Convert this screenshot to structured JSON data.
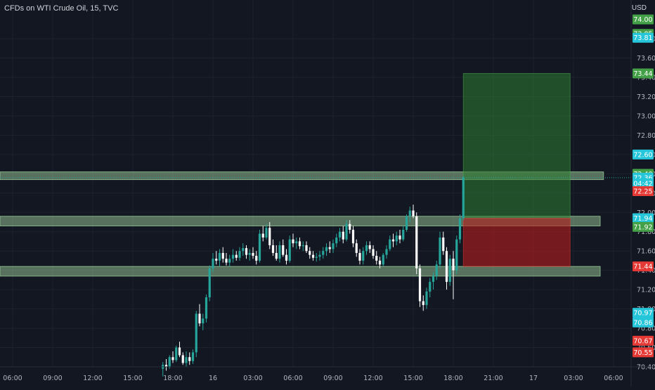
{
  "header": {
    "title": "CFDs on WTI Crude Oil, 15, TVC",
    "currency": "USD"
  },
  "colors": {
    "background": "#131722",
    "grid": "#1e222d",
    "up": "#26a69a",
    "down": "#ef5350",
    "zone": "#8fbc8f",
    "target_zone": "#2e7d32",
    "stop_zone": "#b71c1c",
    "axis_text": "#b2b5be",
    "label_cyan": "#26c6da",
    "label_green": "#43a047",
    "label_red": "#e53935"
  },
  "chart_data": {
    "type": "candlestick",
    "title": "CFDs on WTI Crude Oil, 15, TVC",
    "xlabel": "",
    "ylabel": "USD",
    "ylim": [
      70.4,
      74.07
    ],
    "grid": true,
    "x_ticks": [
      "06:00",
      "09:00",
      "12:00",
      "15:00",
      "18:00",
      "16",
      "03:00",
      "06:00",
      "09:00",
      "12:00",
      "15:00",
      "18:00",
      "21:00",
      "17",
      "03:00",
      "06:00"
    ],
    "y_ticks": [
      70.4,
      70.6,
      70.8,
      71.0,
      71.2,
      71.4,
      71.6,
      71.8,
      72.0,
      72.2,
      72.4,
      72.6,
      72.8,
      73.0,
      73.2,
      73.4,
      73.6,
      73.8
    ],
    "candles": [
      {
        "t": "17:15",
        "o": 70.38,
        "h": 70.45,
        "l": 70.3,
        "c": 70.42
      },
      {
        "t": "17:30",
        "o": 70.42,
        "h": 70.48,
        "l": 70.36,
        "c": 70.4
      },
      {
        "t": "17:45",
        "o": 70.4,
        "h": 70.52,
        "l": 70.38,
        "c": 70.5
      },
      {
        "t": "18:00",
        "o": 70.5,
        "h": 70.56,
        "l": 70.44,
        "c": 70.47
      },
      {
        "t": "18:15",
        "o": 70.47,
        "h": 70.62,
        "l": 70.45,
        "c": 70.6
      },
      {
        "t": "18:30",
        "o": 70.6,
        "h": 70.66,
        "l": 70.5,
        "c": 70.52
      },
      {
        "t": "18:45",
        "o": 70.52,
        "h": 70.55,
        "l": 70.42,
        "c": 70.44
      },
      {
        "t": "19:00",
        "o": 70.44,
        "h": 70.56,
        "l": 70.4,
        "c": 70.5
      },
      {
        "t": "19:15",
        "o": 70.5,
        "h": 70.55,
        "l": 70.42,
        "c": 70.46
      },
      {
        "t": "19:30",
        "o": 70.46,
        "h": 70.58,
        "l": 70.43,
        "c": 70.55
      },
      {
        "t": "19:45",
        "o": 70.55,
        "h": 70.98,
        "l": 70.5,
        "c": 70.95
      },
      {
        "t": "20:00",
        "o": 70.95,
        "h": 71.05,
        "l": 70.82,
        "c": 70.85
      },
      {
        "t": "20:15",
        "o": 70.85,
        "h": 70.95,
        "l": 70.78,
        "c": 70.9
      },
      {
        "t": "20:30",
        "o": 70.9,
        "h": 71.15,
        "l": 70.86,
        "c": 71.12
      },
      {
        "t": "20:45",
        "o": 71.12,
        "h": 71.45,
        "l": 71.08,
        "c": 71.42
      },
      {
        "t": "21:00",
        "o": 71.42,
        "h": 71.58,
        "l": 71.38,
        "c": 71.52
      },
      {
        "t": "21:15",
        "o": 71.52,
        "h": 71.6,
        "l": 71.46,
        "c": 71.5
      },
      {
        "t": "21:30",
        "o": 71.5,
        "h": 71.62,
        "l": 71.44,
        "c": 71.58
      },
      {
        "t": "21:45",
        "o": 71.58,
        "h": 71.64,
        "l": 71.48,
        "c": 71.52
      },
      {
        "t": "22:00",
        "o": 71.52,
        "h": 71.58,
        "l": 71.45,
        "c": 71.48
      },
      {
        "t": "22:15",
        "o": 71.48,
        "h": 71.56,
        "l": 71.44,
        "c": 71.52
      },
      {
        "t": "22:30",
        "o": 71.52,
        "h": 71.62,
        "l": 71.48,
        "c": 71.56
      },
      {
        "t": "22:45",
        "o": 71.56,
        "h": 71.6,
        "l": 71.5,
        "c": 71.53
      },
      {
        "t": "23:00",
        "o": 71.53,
        "h": 71.64,
        "l": 71.5,
        "c": 71.6
      },
      {
        "t": "23:15",
        "o": 71.6,
        "h": 71.68,
        "l": 71.55,
        "c": 71.63
      },
      {
        "t": "23:30",
        "o": 71.63,
        "h": 71.66,
        "l": 71.52,
        "c": 71.56
      },
      {
        "t": "23:45",
        "o": 71.56,
        "h": 71.62,
        "l": 71.5,
        "c": 71.58
      },
      {
        "t": "00:00",
        "o": 71.58,
        "h": 71.64,
        "l": 71.52,
        "c": 71.55
      },
      {
        "t": "00:15",
        "o": 71.55,
        "h": 71.6,
        "l": 71.46,
        "c": 71.5
      },
      {
        "t": "00:30",
        "o": 71.5,
        "h": 71.82,
        "l": 71.48,
        "c": 71.78
      },
      {
        "t": "00:45",
        "o": 71.78,
        "h": 71.86,
        "l": 71.7,
        "c": 71.74
      },
      {
        "t": "01:00",
        "o": 71.74,
        "h": 71.88,
        "l": 71.72,
        "c": 71.84
      },
      {
        "t": "01:15",
        "o": 71.84,
        "h": 71.9,
        "l": 71.62,
        "c": 71.66
      },
      {
        "t": "01:30",
        "o": 71.66,
        "h": 71.72,
        "l": 71.55,
        "c": 71.58
      },
      {
        "t": "01:45",
        "o": 71.58,
        "h": 71.66,
        "l": 71.5,
        "c": 71.52
      },
      {
        "t": "02:00",
        "o": 71.52,
        "h": 71.7,
        "l": 71.48,
        "c": 71.66
      },
      {
        "t": "02:15",
        "o": 71.66,
        "h": 71.72,
        "l": 71.54,
        "c": 71.56
      },
      {
        "t": "02:30",
        "o": 71.56,
        "h": 71.62,
        "l": 71.46,
        "c": 71.5
      },
      {
        "t": "02:45",
        "o": 71.5,
        "h": 71.76,
        "l": 71.48,
        "c": 71.72
      },
      {
        "t": "03:00",
        "o": 71.72,
        "h": 71.78,
        "l": 71.64,
        "c": 71.68
      },
      {
        "t": "03:15",
        "o": 71.68,
        "h": 71.74,
        "l": 71.62,
        "c": 71.7
      },
      {
        "t": "03:30",
        "o": 71.7,
        "h": 71.74,
        "l": 71.62,
        "c": 71.65
      },
      {
        "t": "03:45",
        "o": 71.65,
        "h": 71.7,
        "l": 71.6,
        "c": 71.66
      },
      {
        "t": "04:00",
        "o": 71.66,
        "h": 71.7,
        "l": 71.58,
        "c": 71.6
      },
      {
        "t": "04:15",
        "o": 71.6,
        "h": 71.64,
        "l": 71.52,
        "c": 71.56
      },
      {
        "t": "04:30",
        "o": 71.56,
        "h": 71.6,
        "l": 71.5,
        "c": 71.53
      },
      {
        "t": "04:45",
        "o": 71.53,
        "h": 71.58,
        "l": 71.49,
        "c": 71.54
      },
      {
        "t": "05:00",
        "o": 71.54,
        "h": 71.6,
        "l": 71.5,
        "c": 71.56
      },
      {
        "t": "05:15",
        "o": 71.56,
        "h": 71.64,
        "l": 71.52,
        "c": 71.6
      },
      {
        "t": "05:30",
        "o": 71.6,
        "h": 71.68,
        "l": 71.55,
        "c": 71.64
      },
      {
        "t": "05:45",
        "o": 71.64,
        "h": 71.7,
        "l": 71.58,
        "c": 71.62
      },
      {
        "t": "06:00",
        "o": 71.62,
        "h": 71.72,
        "l": 71.58,
        "c": 71.68
      },
      {
        "t": "06:15",
        "o": 71.68,
        "h": 71.78,
        "l": 71.64,
        "c": 71.74
      },
      {
        "t": "06:30",
        "o": 71.74,
        "h": 71.84,
        "l": 71.7,
        "c": 71.8
      },
      {
        "t": "06:45",
        "o": 71.8,
        "h": 71.86,
        "l": 71.68,
        "c": 71.72
      },
      {
        "t": "07:00",
        "o": 71.72,
        "h": 71.92,
        "l": 71.7,
        "c": 71.88
      },
      {
        "t": "07:15",
        "o": 71.88,
        "h": 71.92,
        "l": 71.78,
        "c": 71.82
      },
      {
        "t": "07:30",
        "o": 71.82,
        "h": 71.86,
        "l": 71.64,
        "c": 71.68
      },
      {
        "t": "07:45",
        "o": 71.68,
        "h": 71.72,
        "l": 71.54,
        "c": 71.58
      },
      {
        "t": "08:00",
        "o": 71.58,
        "h": 71.62,
        "l": 71.46,
        "c": 71.5
      },
      {
        "t": "08:15",
        "o": 71.5,
        "h": 71.64,
        "l": 71.46,
        "c": 71.6
      },
      {
        "t": "08:30",
        "o": 71.6,
        "h": 71.7,
        "l": 71.56,
        "c": 71.66
      },
      {
        "t": "08:45",
        "o": 71.66,
        "h": 71.7,
        "l": 71.58,
        "c": 71.62
      },
      {
        "t": "09:00",
        "o": 71.62,
        "h": 71.66,
        "l": 71.52,
        "c": 71.55
      },
      {
        "t": "09:15",
        "o": 71.55,
        "h": 71.6,
        "l": 71.46,
        "c": 71.5
      },
      {
        "t": "09:30",
        "o": 71.5,
        "h": 71.54,
        "l": 71.42,
        "c": 71.46
      },
      {
        "t": "09:45",
        "o": 71.46,
        "h": 71.58,
        "l": 71.44,
        "c": 71.56
      },
      {
        "t": "10:00",
        "o": 71.56,
        "h": 71.66,
        "l": 71.52,
        "c": 71.62
      },
      {
        "t": "10:15",
        "o": 71.62,
        "h": 71.76,
        "l": 71.6,
        "c": 71.72
      },
      {
        "t": "10:30",
        "o": 71.72,
        "h": 71.78,
        "l": 71.64,
        "c": 71.7
      },
      {
        "t": "10:45",
        "o": 71.7,
        "h": 71.8,
        "l": 71.66,
        "c": 71.76
      },
      {
        "t": "11:00",
        "o": 71.76,
        "h": 71.82,
        "l": 71.68,
        "c": 71.72
      },
      {
        "t": "11:15",
        "o": 71.72,
        "h": 71.86,
        "l": 71.7,
        "c": 71.82
      },
      {
        "t": "11:30",
        "o": 71.82,
        "h": 71.98,
        "l": 71.8,
        "c": 71.96
      },
      {
        "t": "11:45",
        "o": 71.96,
        "h": 72.06,
        "l": 71.9,
        "c": 72.02
      },
      {
        "t": "12:00",
        "o": 72.02,
        "h": 72.08,
        "l": 71.94,
        "c": 71.96
      },
      {
        "t": "12:15",
        "o": 71.96,
        "h": 72.0,
        "l": 71.36,
        "c": 71.42
      },
      {
        "t": "12:30",
        "o": 71.42,
        "h": 71.46,
        "l": 71.02,
        "c": 71.08
      },
      {
        "t": "12:45",
        "o": 71.08,
        "h": 71.14,
        "l": 70.98,
        "c": 71.04
      },
      {
        "t": "13:00",
        "o": 71.04,
        "h": 71.22,
        "l": 71.0,
        "c": 71.18
      },
      {
        "t": "13:15",
        "o": 71.18,
        "h": 71.32,
        "l": 71.12,
        "c": 71.28
      },
      {
        "t": "13:30",
        "o": 71.28,
        "h": 71.38,
        "l": 71.2,
        "c": 71.34
      },
      {
        "t": "13:45",
        "o": 71.34,
        "h": 71.5,
        "l": 71.3,
        "c": 71.46
      },
      {
        "t": "14:00",
        "o": 71.46,
        "h": 71.8,
        "l": 71.42,
        "c": 71.74
      },
      {
        "t": "14:15",
        "o": 71.74,
        "h": 71.8,
        "l": 71.56,
        "c": 71.6
      },
      {
        "t": "14:30",
        "o": 71.6,
        "h": 71.64,
        "l": 71.2,
        "c": 71.28
      },
      {
        "t": "14:45",
        "o": 71.28,
        "h": 71.56,
        "l": 71.24,
        "c": 71.52
      },
      {
        "t": "15:00",
        "o": 71.52,
        "h": 71.6,
        "l": 71.1,
        "c": 71.4
      },
      {
        "t": "15:15",
        "o": 71.4,
        "h": 71.76,
        "l": 71.36,
        "c": 71.72
      },
      {
        "t": "15:30",
        "o": 71.72,
        "h": 71.98,
        "l": 71.68,
        "c": 71.94
      },
      {
        "t": "15:45",
        "o": 71.94,
        "h": 72.38,
        "l": 71.92,
        "c": 72.36
      }
    ],
    "zones": [
      {
        "name": "resistance-zone-upper",
        "price_low": 72.34,
        "price_high": 72.42,
        "end": "02:15"
      },
      {
        "name": "resistance-zone-middle",
        "price_low": 71.86,
        "price_high": 71.96,
        "end": "02:00"
      },
      {
        "name": "support-zone-lower",
        "price_low": 71.34,
        "price_high": 71.44,
        "end": "02:00"
      }
    ],
    "position": {
      "start": "15:45",
      "end": "23:45",
      "entry": 71.94,
      "target": 73.44,
      "stop": 71.44
    },
    "last_price": 72.36,
    "price_labels": [
      {
        "value": "74.00",
        "price": 74.0,
        "color": "label_green"
      },
      {
        "value": "73.85",
        "price": 73.85,
        "color": "label_green"
      },
      {
        "value": "73.81",
        "price": 73.81,
        "color": "label_cyan"
      },
      {
        "value": "73.44",
        "price": 73.44,
        "color": "label_green"
      },
      {
        "value": "72.60",
        "price": 72.6,
        "color": "label_cyan"
      },
      {
        "value": "72.40",
        "price": 72.4,
        "color": "label_green"
      },
      {
        "value": "72.36",
        "price": 72.36,
        "color": "label_cyan"
      },
      {
        "value": "04:42",
        "price": 72.3,
        "color": "label_cyan"
      },
      {
        "value": "72.25",
        "price": 72.22,
        "color": "label_red"
      },
      {
        "value": "71.94",
        "price": 71.94,
        "color": "label_cyan"
      },
      {
        "value": "71.92",
        "price": 71.85,
        "color": "label_green"
      },
      {
        "value": "71.44",
        "price": 71.44,
        "color": "label_red"
      },
      {
        "value": "70.97",
        "price": 70.96,
        "color": "label_cyan"
      },
      {
        "value": "70.86",
        "price": 70.86,
        "color": "label_cyan"
      },
      {
        "value": "70.67",
        "price": 70.67,
        "color": "label_red"
      },
      {
        "value": "70.55",
        "price": 70.55,
        "color": "label_red"
      }
    ]
  }
}
